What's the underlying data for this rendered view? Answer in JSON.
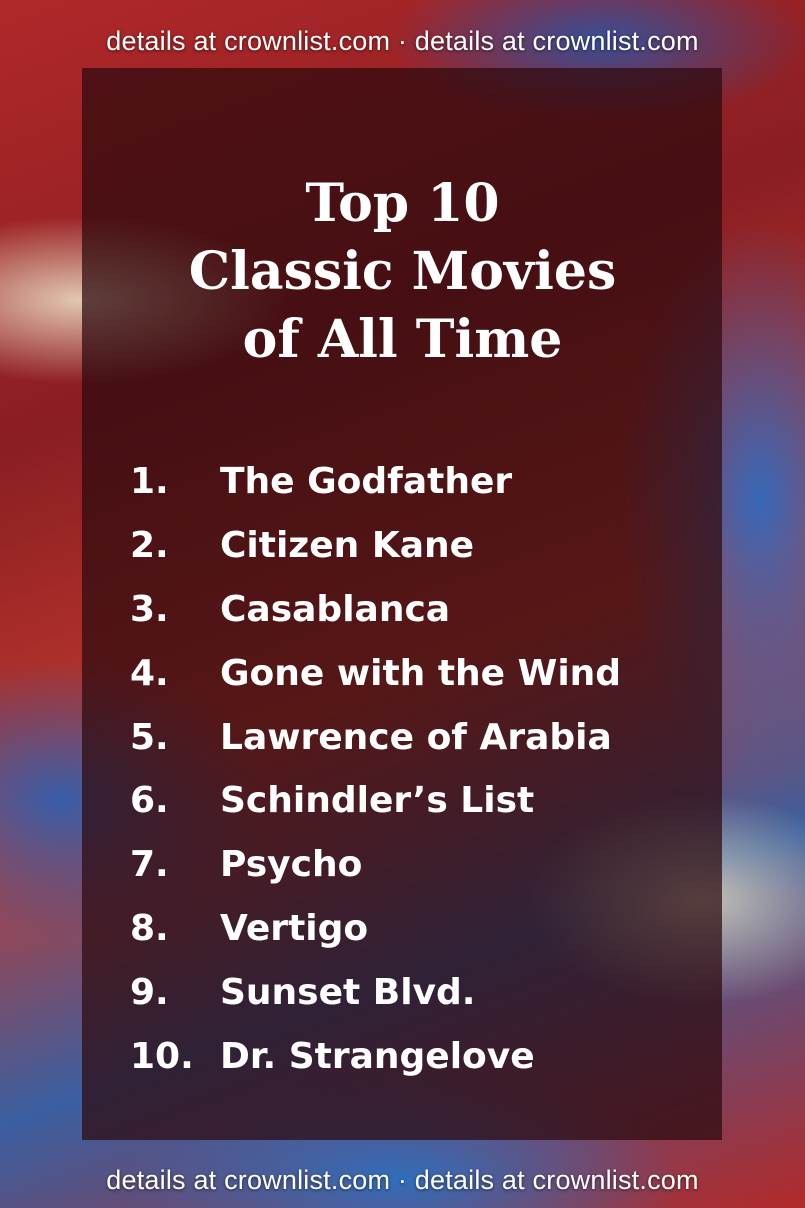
{
  "watermark": {
    "text": "details at crownlist.com · details at crownlist.com"
  },
  "title": {
    "line1": "Top 10",
    "line2": "Classic Movies",
    "line3": "of All Time"
  },
  "items": [
    {
      "num": "1.",
      "label": "The Godfather"
    },
    {
      "num": "2.",
      "label": "Citizen Kane"
    },
    {
      "num": "3.",
      "label": "Casablanca"
    },
    {
      "num": "4.",
      "label": "Gone with the Wind"
    },
    {
      "num": "5.",
      "label": "Lawrence of Arabia"
    },
    {
      "num": "6.",
      "label": "Schindler’s List"
    },
    {
      "num": "7.",
      "label": "Psycho"
    },
    {
      "num": "8.",
      "label": "Vertigo"
    },
    {
      "num": "9.",
      "label": "Sunset Blvd."
    },
    {
      "num": "10.",
      "label": "Dr. Strangelove"
    }
  ]
}
